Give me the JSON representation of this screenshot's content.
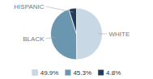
{
  "chart_data": {
    "type": "pie",
    "categories": [
      "WHITE",
      "BLACK",
      "HISPANIC"
    ],
    "values": [
      49.9,
      45.3,
      4.8
    ],
    "value_labels": [
      "49.9%",
      "45.3%",
      "4.8%"
    ],
    "colors": [
      "#c8d8e4",
      "#6a96b0",
      "#1e3d5c"
    ],
    "legend": "bottom"
  }
}
